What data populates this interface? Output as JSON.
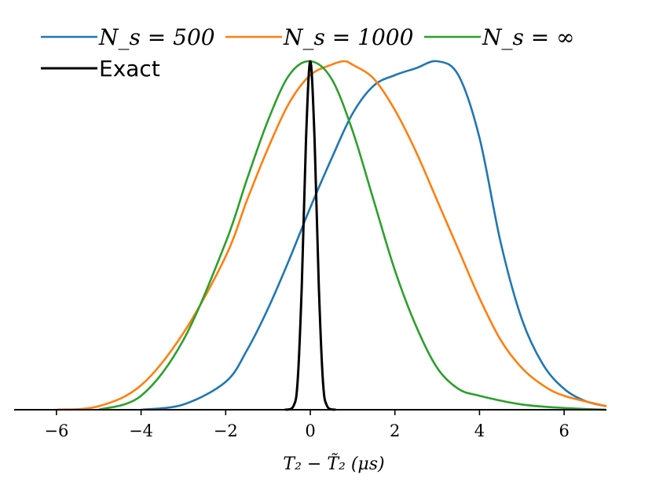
{
  "chart_data": {
    "type": "line",
    "xlabel": "T₂ − T̃₂ (μs)",
    "ylabel": "",
    "xlim": [
      -7,
      7
    ],
    "ylim": [
      0,
      1.0
    ],
    "xticks": [
      -6,
      -4,
      -2,
      0,
      2,
      4,
      6
    ],
    "xtick_labels": [
      "−6",
      "−4",
      "−2",
      "0",
      "2",
      "4",
      "6"
    ],
    "grid": false,
    "legend_placement": "top",
    "series": [
      {
        "name": "N_s = 500",
        "legend_label": "N_s = 500",
        "color": "#1f77b4",
        "x": [
          -4.0,
          -3.0,
          -2.0,
          -1.5,
          -1.0,
          -0.5,
          0.0,
          0.5,
          1.0,
          1.5,
          2.0,
          2.5,
          3.0,
          3.5,
          4.0,
          4.5,
          5.0,
          5.5,
          6.0,
          6.5,
          7.0
        ],
        "y": [
          0.0,
          0.015,
          0.08,
          0.17,
          0.29,
          0.43,
          0.58,
          0.72,
          0.85,
          0.93,
          0.96,
          0.98,
          1.0,
          0.96,
          0.78,
          0.48,
          0.26,
          0.13,
          0.06,
          0.025,
          0.01
        ]
      },
      {
        "name": "N_s = 1000",
        "legend_label": "N_s = 1000",
        "color": "#ff7f0e",
        "x": [
          -6.0,
          -5.0,
          -4.0,
          -3.0,
          -2.0,
          -1.5,
          -1.0,
          -0.5,
          0.0,
          0.5,
          0.8,
          1.0,
          1.5,
          2.0,
          2.5,
          3.0,
          3.5,
          4.0,
          4.5,
          5.0,
          5.5,
          6.0,
          7.0
        ],
        "y": [
          0.0,
          0.01,
          0.07,
          0.22,
          0.44,
          0.6,
          0.75,
          0.88,
          0.96,
          0.99,
          1.0,
          0.99,
          0.95,
          0.86,
          0.74,
          0.6,
          0.46,
          0.32,
          0.2,
          0.12,
          0.07,
          0.04,
          0.01
        ]
      },
      {
        "name": "N_s = ∞",
        "legend_label": "N_s = ∞",
        "color": "#2ca02c",
        "x": [
          -5.0,
          -4.0,
          -3.0,
          -2.0,
          -1.5,
          -1.0,
          -0.5,
          0.0,
          0.5,
          1.0,
          1.5,
          2.0,
          2.5,
          3.0,
          3.5,
          4.0,
          5.0,
          6.0,
          7.0
        ],
        "y": [
          0.0,
          0.04,
          0.2,
          0.48,
          0.66,
          0.83,
          0.96,
          1.0,
          0.95,
          0.8,
          0.6,
          0.4,
          0.24,
          0.12,
          0.06,
          0.04,
          0.015,
          0.005,
          0.0
        ]
      },
      {
        "name": "Exact",
        "legend_label": "Exact",
        "color": "#000000",
        "x": [
          -0.6,
          -0.4,
          -0.3,
          -0.2,
          -0.1,
          0.0,
          0.1,
          0.2,
          0.3,
          0.4,
          0.6
        ],
        "y": [
          0.0,
          0.01,
          0.08,
          0.36,
          0.78,
          1.0,
          0.78,
          0.36,
          0.08,
          0.01,
          0.0
        ]
      }
    ]
  }
}
